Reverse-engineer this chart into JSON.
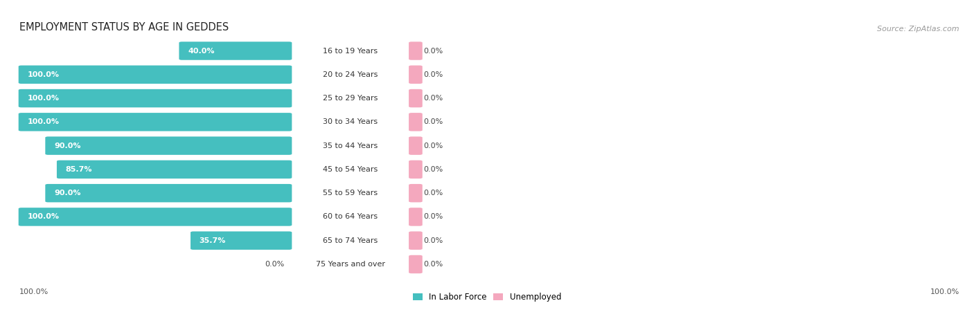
{
  "title": "EMPLOYMENT STATUS BY AGE IN GEDDES",
  "source": "Source: ZipAtlas.com",
  "categories": [
    "16 to 19 Years",
    "20 to 24 Years",
    "25 to 29 Years",
    "30 to 34 Years",
    "35 to 44 Years",
    "45 to 54 Years",
    "55 to 59 Years",
    "60 to 64 Years",
    "65 to 74 Years",
    "75 Years and over"
  ],
  "labor_force": [
    40.0,
    100.0,
    100.0,
    100.0,
    90.0,
    85.7,
    90.0,
    100.0,
    35.7,
    0.0
  ],
  "unemployed": [
    0.0,
    0.0,
    0.0,
    0.0,
    0.0,
    0.0,
    0.0,
    0.0,
    0.0,
    0.0
  ],
  "labor_force_color": "#45bfbf",
  "unemployed_color": "#f4a8be",
  "title_fontsize": 10.5,
  "source_fontsize": 8,
  "bar_label_fontsize": 8,
  "cat_label_fontsize": 8,
  "axis_label_fontsize": 8,
  "legend_fontsize": 8.5,
  "left_axis_label": "100.0%",
  "right_axis_label": "100.0%",
  "row_bg_even": "#ebebeb",
  "row_bg_odd": "#f5f5f5",
  "fig_bg": "#ffffff",
  "cat_label_bg": "#ffffff",
  "bar_max_pct": 100.0,
  "unemployed_stub_pct": 8.0
}
